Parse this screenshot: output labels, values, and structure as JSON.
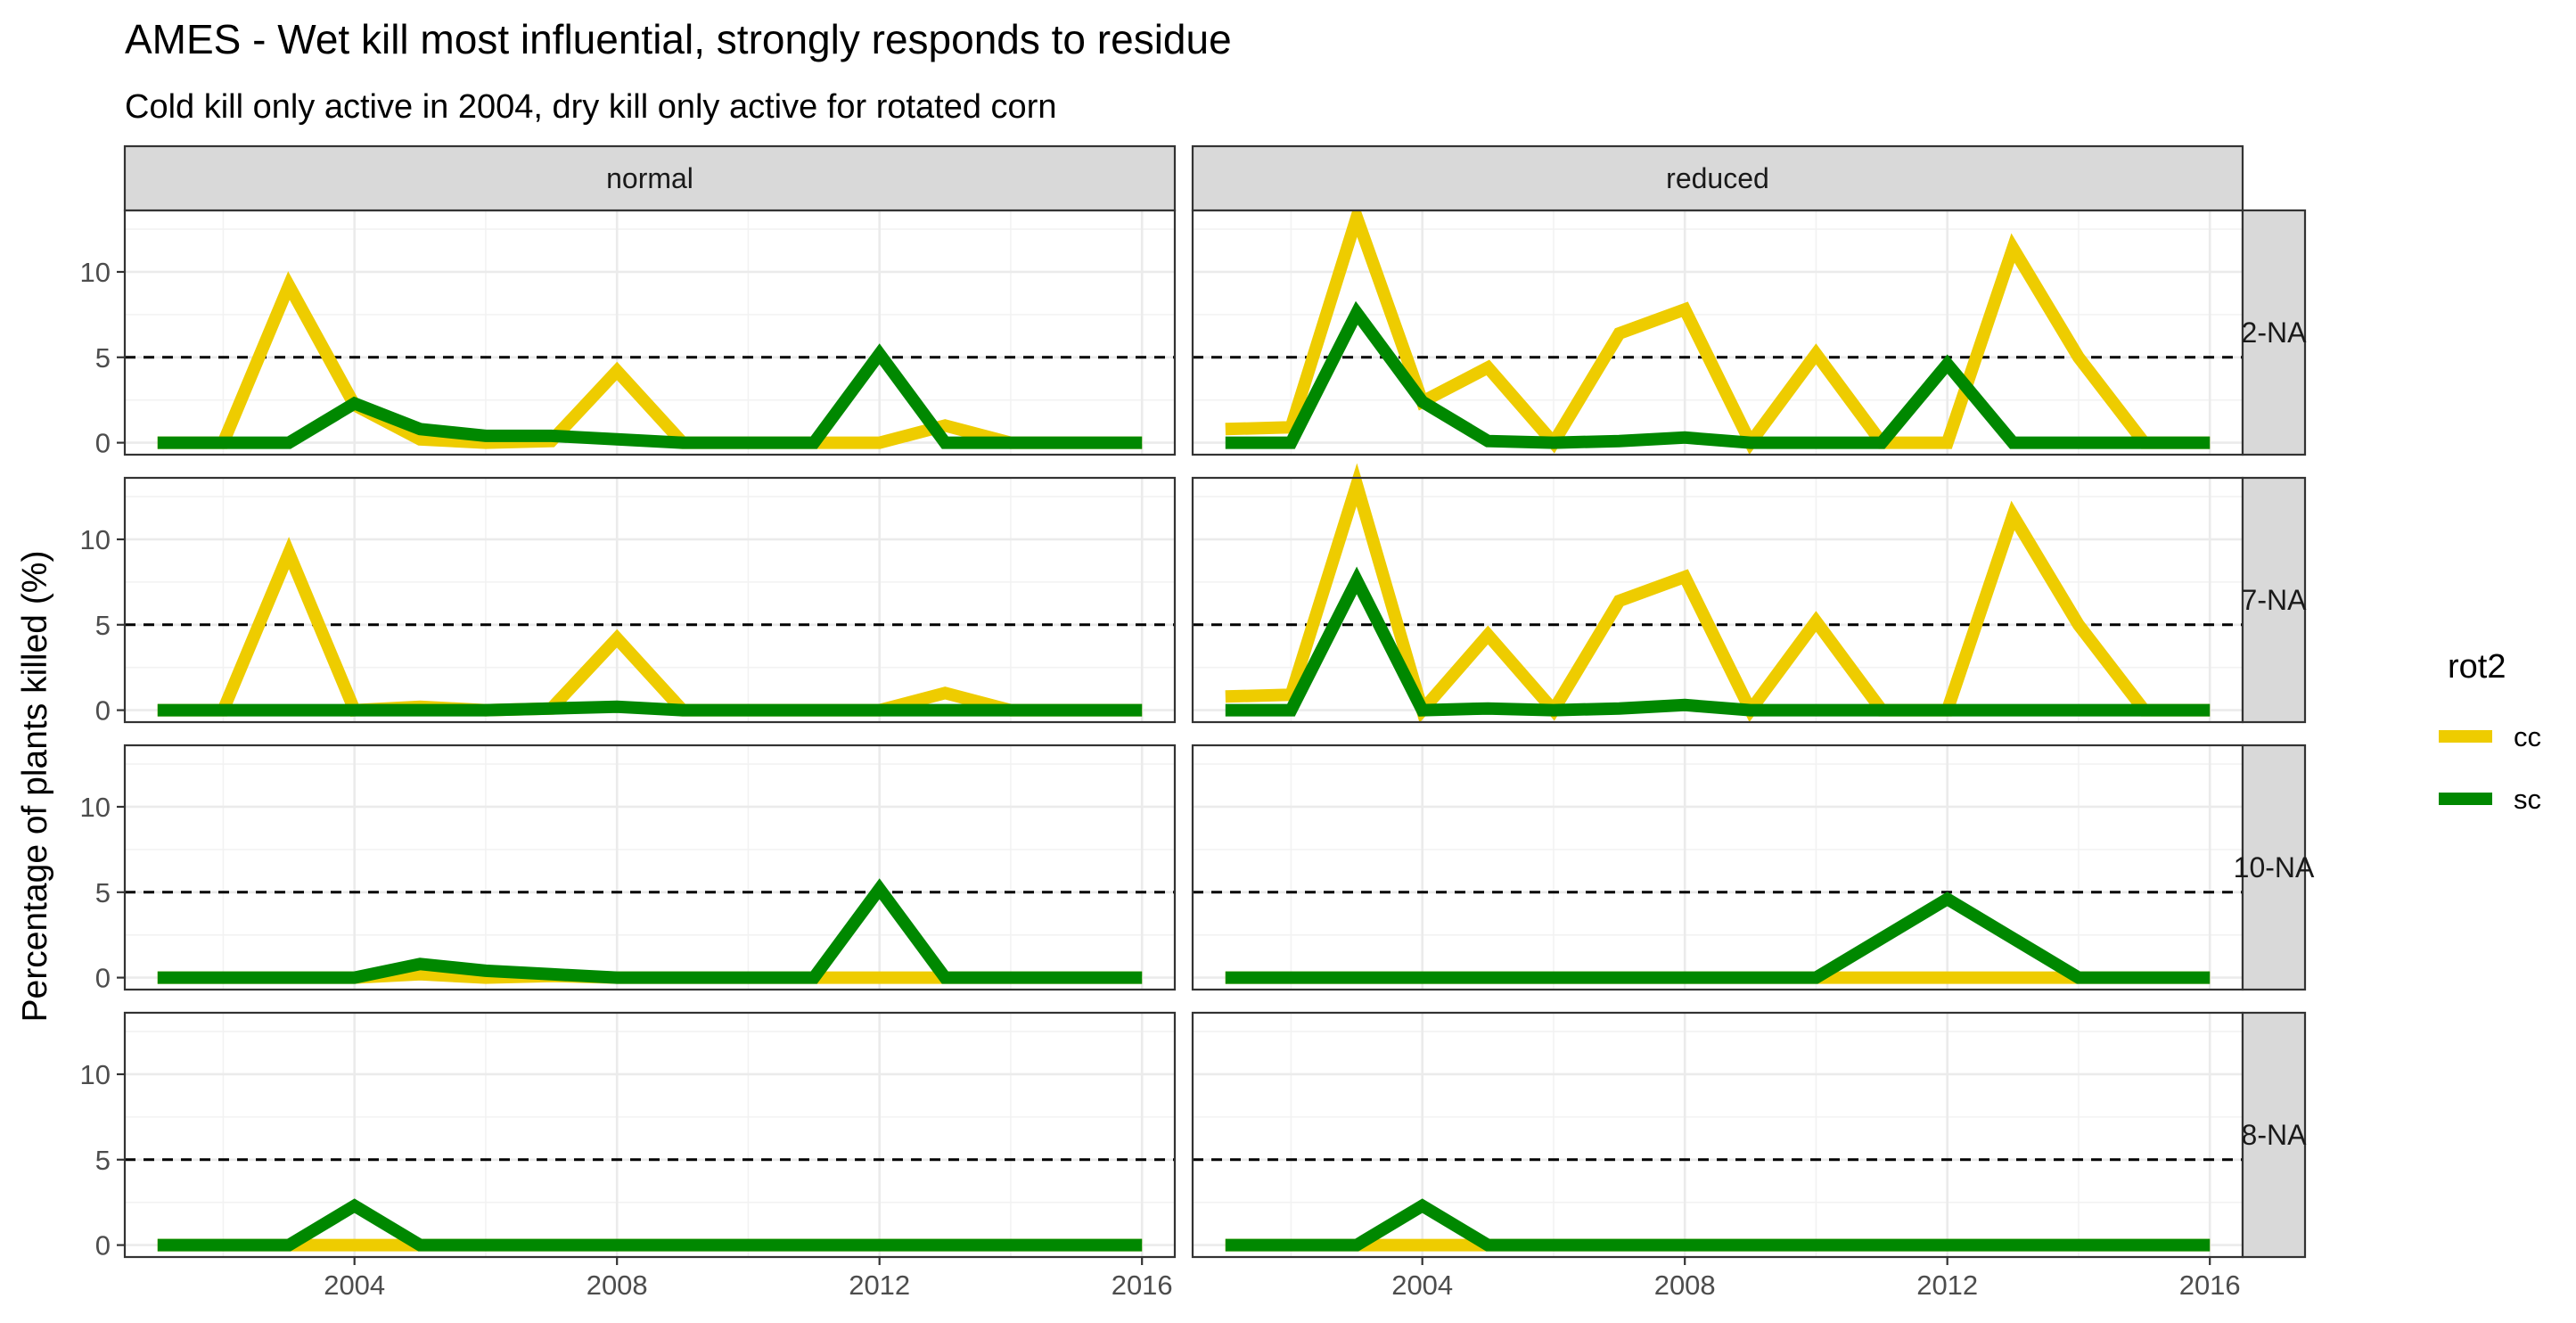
{
  "chart_data": {
    "type": "line",
    "title": "AMES - Wet kill most influential, strongly responds to residue",
    "subtitle": "Cold kill only active in 2004, dry kill only active for rotated corn",
    "xlabel": "",
    "ylabel": "Percentage of plants killed (%)",
    "xlim": [
      2000.5,
      2016.5
    ],
    "ylim": [
      -0.7,
      13.6
    ],
    "x_ticks": [
      2004,
      2008,
      2012,
      2016
    ],
    "y_ticks": [
      0,
      5,
      10
    ],
    "reference_line": {
      "y": 5,
      "style": "dashed"
    },
    "grid": true,
    "legend": {
      "title": "rot2",
      "position": "right",
      "entries": [
        {
          "label": "cc",
          "color": "#EECC00"
        },
        {
          "label": "sc",
          "color": "#008800"
        }
      ]
    },
    "facet_columns": [
      "normal",
      "reduced"
    ],
    "facet_rows": [
      "2-NA",
      "7-NA",
      "10-NA",
      "8-NA"
    ],
    "x": [
      2001,
      2002,
      2003,
      2004,
      2005,
      2006,
      2007,
      2008,
      2009,
      2010,
      2011,
      2012,
      2013,
      2014,
      2015,
      2016
    ],
    "panels": [
      {
        "col": "normal",
        "row": "2-NA",
        "series": [
          {
            "name": "cc",
            "values": [
              0,
              0,
              9.2,
              2.2,
              0.2,
              0,
              0.1,
              4.2,
              0,
              0,
              0,
              0,
              1.0,
              0,
              0,
              0
            ]
          },
          {
            "name": "sc",
            "values": [
              0,
              0,
              0,
              2.3,
              0.8,
              0.4,
              0.4,
              0.2,
              0,
              0,
              0,
              5.2,
              0,
              0,
              0,
              0
            ]
          }
        ]
      },
      {
        "col": "reduced",
        "row": "2-NA",
        "series": [
          {
            "name": "cc",
            "values": [
              0.8,
              0.9,
              13.2,
              2.4,
              4.4,
              0,
              6.4,
              7.8,
              0,
              5.2,
              0,
              0,
              11.4,
              5.0,
              0,
              0
            ]
          },
          {
            "name": "sc",
            "values": [
              0,
              0,
              7.6,
              2.4,
              0.1,
              0,
              0.1,
              0.3,
              0,
              0,
              0,
              4.6,
              0,
              0,
              0,
              0
            ]
          }
        ]
      },
      {
        "col": "normal",
        "row": "7-NA",
        "series": [
          {
            "name": "cc",
            "values": [
              0,
              0,
              9.2,
              0,
              0.2,
              0,
              0.1,
              4.2,
              0,
              0,
              0,
              0,
              1.0,
              0,
              0,
              0
            ]
          },
          {
            "name": "sc",
            "values": [
              0,
              0,
              0,
              0,
              0,
              0,
              0.1,
              0.2,
              0,
              0,
              0,
              0,
              0,
              0,
              0,
              0
            ]
          }
        ]
      },
      {
        "col": "reduced",
        "row": "7-NA",
        "series": [
          {
            "name": "cc",
            "values": [
              0.8,
              0.9,
              13.2,
              0,
              4.4,
              0,
              6.4,
              7.8,
              0,
              5.2,
              0,
              0,
              11.4,
              5.0,
              0,
              0
            ]
          },
          {
            "name": "sc",
            "values": [
              0,
              0,
              7.6,
              0,
              0.1,
              0,
              0.1,
              0.3,
              0,
              0,
              0,
              0,
              0,
              0,
              0,
              0
            ]
          }
        ]
      },
      {
        "col": "normal",
        "row": "10-NA",
        "series": [
          {
            "name": "cc",
            "values": [
              0,
              0,
              0,
              0,
              0.2,
              0,
              0.1,
              0,
              0,
              0,
              0,
              0,
              0,
              0,
              0,
              0
            ]
          },
          {
            "name": "sc",
            "values": [
              0,
              0,
              0,
              0,
              0.8,
              0.4,
              0.2,
              0,
              0,
              0,
              0,
              5.2,
              0,
              0,
              0,
              0
            ]
          }
        ]
      },
      {
        "col": "reduced",
        "row": "10-NA",
        "series": [
          {
            "name": "cc",
            "values": [
              0,
              0,
              0,
              0,
              0,
              0,
              0,
              0,
              0,
              0,
              0,
              0,
              0,
              0,
              0,
              0
            ]
          },
          {
            "name": "sc",
            "values": [
              0,
              0,
              0,
              0,
              0,
              0,
              0,
              0,
              0,
              0,
              2.3,
              4.6,
              2.3,
              0,
              0,
              0
            ]
          }
        ]
      },
      {
        "col": "normal",
        "row": "8-NA",
        "series": [
          {
            "name": "cc",
            "values": [
              0,
              0,
              0,
              0,
              0,
              0,
              0,
              0,
              0,
              0,
              0,
              0,
              0,
              0,
              0,
              0
            ]
          },
          {
            "name": "sc",
            "values": [
              0,
              0,
              0,
              2.3,
              0,
              0,
              0,
              0,
              0,
              0,
              0,
              0,
              0,
              0,
              0,
              0
            ]
          }
        ]
      },
      {
        "col": "reduced",
        "row": "8-NA",
        "series": [
          {
            "name": "cc",
            "values": [
              0,
              0,
              0,
              0,
              0,
              0,
              0,
              0,
              0,
              0,
              0,
              0,
              0,
              0,
              0,
              0
            ]
          },
          {
            "name": "sc",
            "values": [
              0,
              0,
              0,
              2.3,
              0,
              0,
              0,
              0,
              0,
              0,
              0,
              0,
              0,
              0,
              0,
              0
            ]
          }
        ]
      }
    ]
  }
}
